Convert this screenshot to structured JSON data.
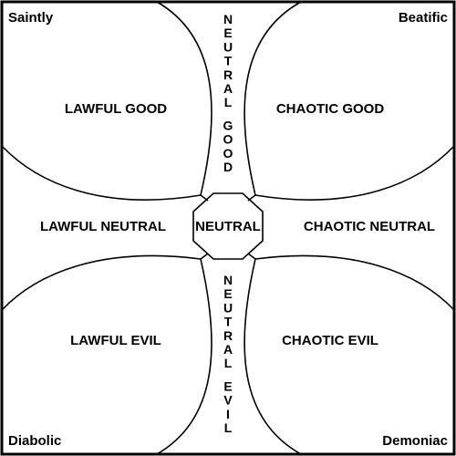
{
  "corners": {
    "top_left": "Saintly",
    "top_right": "Beatific",
    "bottom_left": "Diabolic",
    "bottom_right": "Demoniac"
  },
  "regions": {
    "lawful_good": "LAWFUL GOOD",
    "chaotic_good": "CHAOTIC GOOD",
    "lawful_neutral": "LAWFUL NEUTRAL",
    "neutral": "NEUTRAL",
    "chaotic_neutral": "CHAOTIC NEUTRAL",
    "lawful_evil": "LAWFUL EVIL",
    "chaotic_evil": "CHAOTIC EVIL"
  },
  "vertical_labels": {
    "neutral_good": "NEUTRAL GOOD",
    "neutral_evil": "NEUTRAL EVIL"
  }
}
